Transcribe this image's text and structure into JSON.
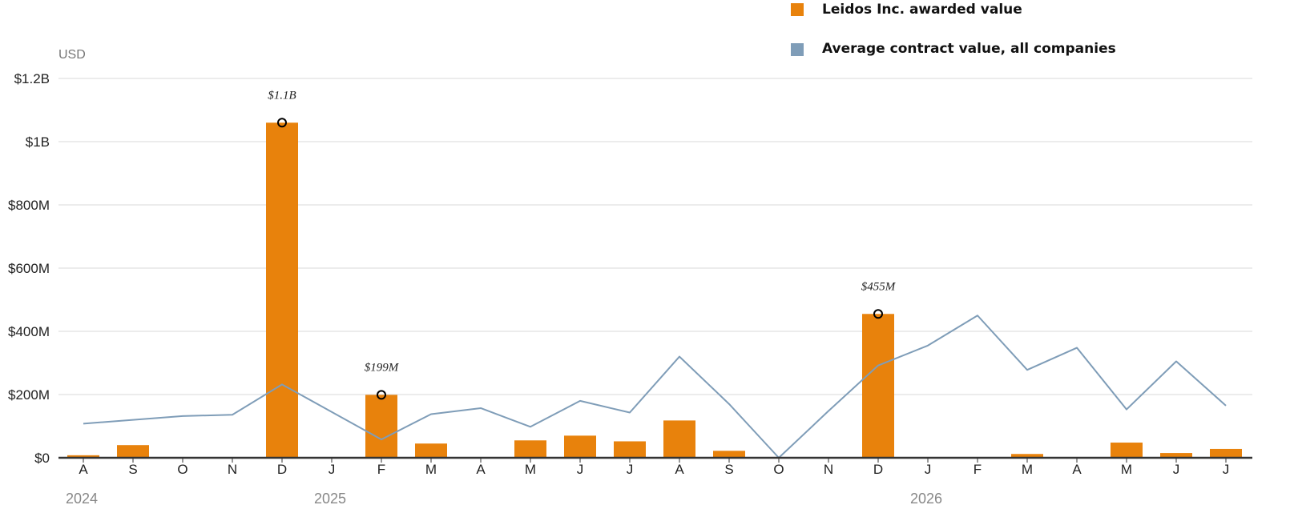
{
  "chart_data": {
    "type": "bar",
    "unit_label": "USD",
    "categories": [
      "A",
      "S",
      "O",
      "N",
      "D",
      "J",
      "F",
      "M",
      "A",
      "M",
      "J",
      "J",
      "A",
      "S",
      "O",
      "N",
      "D",
      "J",
      "F",
      "M",
      "A",
      "M",
      "J",
      "J"
    ],
    "year_labels": [
      {
        "index": 0,
        "label": "2024"
      },
      {
        "index": 5,
        "label": "2025"
      },
      {
        "index": 17,
        "label": "2026"
      }
    ],
    "y_ticks": [
      {
        "value": 0,
        "label": "$0"
      },
      {
        "value": 200000000,
        "label": "$200M"
      },
      {
        "value": 400000000,
        "label": "$400M"
      },
      {
        "value": 600000000,
        "label": "$600M"
      },
      {
        "value": 800000000,
        "label": "$800M"
      },
      {
        "value": 1000000000,
        "label": "$1B"
      },
      {
        "value": 1200000000,
        "label": "$1.2B"
      }
    ],
    "ylim": [
      0,
      1200000000
    ],
    "grid": true,
    "legend_position": "top-right",
    "series": [
      {
        "name": "Leidos Inc. awarded value",
        "kind": "bar",
        "color": "#e8820c",
        "values": [
          8000000,
          40000000,
          0,
          0,
          1060000000,
          0,
          199000000,
          45000000,
          0,
          55000000,
          70000000,
          52000000,
          118000000,
          22000000,
          0,
          0,
          455000000,
          0,
          0,
          12000000,
          0,
          48000000,
          15000000,
          28000000
        ]
      },
      {
        "name": "Average contract value, all companies",
        "kind": "line",
        "color": "#7f9db8",
        "values": [
          108000000,
          120000000,
          132000000,
          136000000,
          232000000,
          145000000,
          58000000,
          138000000,
          157000000,
          98000000,
          180000000,
          143000000,
          320000000,
          170000000,
          0,
          148000000,
          292000000,
          355000000,
          450000000,
          278000000,
          348000000,
          153000000,
          305000000,
          165000000
        ]
      }
    ],
    "annotations": [
      {
        "index": 4,
        "value": 1060000000,
        "label": "$1.1B"
      },
      {
        "index": 6,
        "value": 199000000,
        "label": "$199M"
      },
      {
        "index": 16,
        "value": 455000000,
        "label": "$455M"
      }
    ]
  }
}
